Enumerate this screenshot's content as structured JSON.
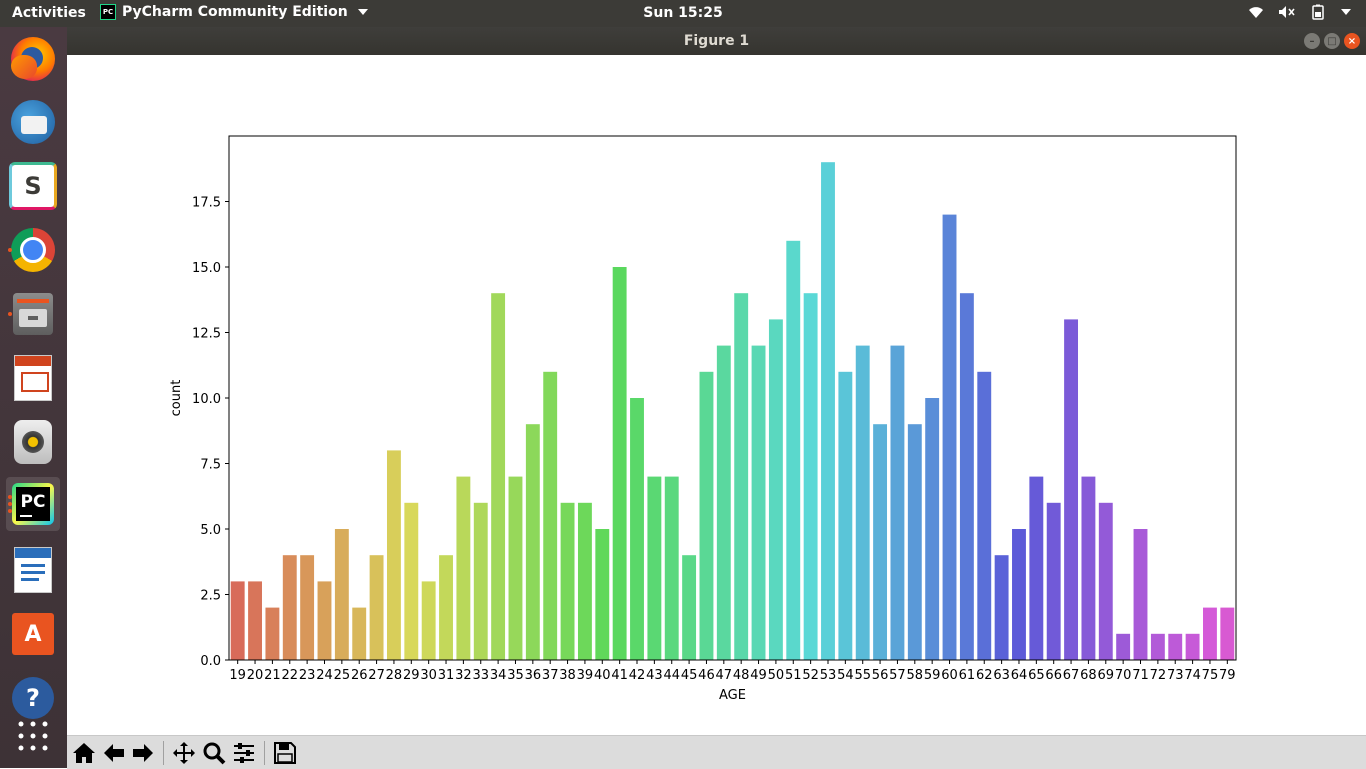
{
  "top_panel": {
    "activities": "Activities",
    "app_name": "PyCharm Community Edition",
    "clock": "Sun 15:25",
    "indicators": [
      "wifi-icon",
      "volume-muted-icon",
      "battery-icon",
      "power-menu-icon"
    ]
  },
  "launcher": {
    "items": [
      {
        "name": "firefox",
        "icon": "firefox-icon"
      },
      {
        "name": "thunderbird",
        "icon": "thunderbird-icon"
      },
      {
        "name": "slack",
        "icon": "slack-icon",
        "letter": "S"
      },
      {
        "name": "chrome",
        "icon": "chrome-icon"
      },
      {
        "name": "files",
        "icon": "file-cabinet-icon"
      },
      {
        "name": "impress",
        "icon": "presentation-icon"
      },
      {
        "name": "rhythmbox",
        "icon": "speaker-icon"
      },
      {
        "name": "pycharm",
        "icon": "pycharm-icon",
        "letters": "PC"
      },
      {
        "name": "writer",
        "icon": "document-icon"
      },
      {
        "name": "software",
        "icon": "shopping-bag-icon",
        "letter": "A"
      },
      {
        "name": "help",
        "icon": "help-icon",
        "letter": "?"
      },
      {
        "name": "show-apps",
        "icon": "app-grid-icon"
      }
    ]
  },
  "window": {
    "title": "Figure 1"
  },
  "toolbar": {
    "buttons": [
      "home-icon",
      "back-icon",
      "forward-icon",
      "pan-icon",
      "zoom-icon",
      "configure-subplots-icon",
      "save-icon"
    ]
  },
  "chart_data": {
    "type": "bar",
    "xlabel": "AGE",
    "ylabel": "count",
    "categories": [
      "19",
      "20",
      "21",
      "22",
      "23",
      "24",
      "25",
      "26",
      "27",
      "28",
      "29",
      "30",
      "31",
      "32",
      "33",
      "34",
      "35",
      "36",
      "37",
      "38",
      "39",
      "40",
      "41",
      "42",
      "43",
      "44",
      "45",
      "46",
      "47",
      "48",
      "49",
      "50",
      "51",
      "52",
      "53",
      "54",
      "55",
      "56",
      "57",
      "58",
      "59",
      "60",
      "61",
      "62",
      "63",
      "64",
      "65",
      "66",
      "67",
      "68",
      "69",
      "70",
      "71",
      "72",
      "73",
      "74",
      "75",
      "79"
    ],
    "values": [
      3,
      3,
      2,
      4,
      4,
      3,
      5,
      2,
      4,
      8,
      6,
      3,
      4,
      7,
      6,
      14,
      7,
      9,
      11,
      6,
      6,
      5,
      15,
      10,
      7,
      7,
      4,
      11,
      12,
      14,
      12,
      13,
      16,
      14,
      19,
      11,
      12,
      9,
      12,
      9,
      10,
      17,
      14,
      11,
      4,
      5,
      7,
      6,
      13,
      7,
      6,
      1,
      5,
      1,
      1,
      1,
      2,
      2
    ],
    "ylim": [
      0,
      20
    ],
    "yticks": [
      "0.0",
      "2.5",
      "5.0",
      "7.5",
      "10.0",
      "12.5",
      "15.0",
      "17.5"
    ],
    "palette": "husl"
  }
}
